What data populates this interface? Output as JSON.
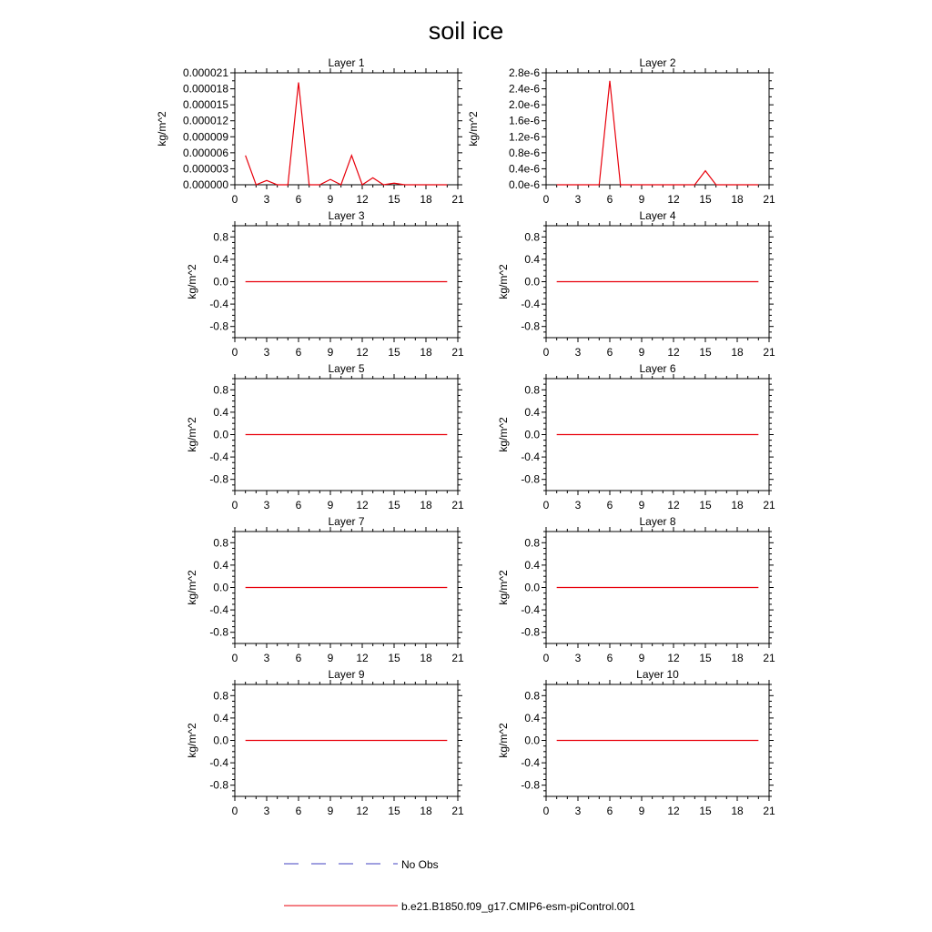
{
  "title": "soil ice",
  "colors": {
    "model": "#e8000b",
    "obs": "#4040c0"
  },
  "legend": {
    "obs_label": "No Obs",
    "model_label": "b.e21.B1850.f09_g17.CMIP6-esm-piControl.001"
  },
  "chart_data": [
    {
      "type": "line",
      "title": "Layer 1",
      "ylabel": "kg/m^2",
      "xlim": [
        0,
        21
      ],
      "ylim": [
        0,
        2.1e-05
      ],
      "xticks": [
        "0",
        "3",
        "6",
        "9",
        "12",
        "15",
        "18",
        "21"
      ],
      "yticks": [
        "0.000000",
        "0.000003",
        "0.000006",
        "0.000009",
        "0.000012",
        "0.000015",
        "0.000018",
        "0.000021"
      ],
      "x": [
        1,
        2,
        3,
        4,
        5,
        6,
        7,
        8,
        9,
        10,
        11,
        12,
        13,
        14,
        15,
        16,
        17,
        18,
        19,
        20
      ],
      "series": [
        {
          "values": [
            5.5e-06,
            0.0,
            8e-07,
            0.0,
            0.0,
            1.92e-05,
            0.0,
            0.0,
            1e-06,
            0.0,
            5.5e-06,
            0.0,
            1.3e-06,
            0.0,
            3e-07,
            0.0,
            0.0,
            0.0,
            0.0,
            0.0
          ]
        }
      ]
    },
    {
      "type": "line",
      "title": "Layer 2",
      "ylabel": "kg/m^2",
      "xlim": [
        0,
        21
      ],
      "ylim": [
        0,
        2.8e-06
      ],
      "xticks": [
        "0",
        "3",
        "6",
        "9",
        "12",
        "15",
        "18",
        "21"
      ],
      "yticks": [
        "0.0e-6",
        "0.4e-6",
        "0.8e-6",
        "1.2e-6",
        "1.6e-6",
        "2.0e-6",
        "2.4e-6",
        "2.8e-6"
      ],
      "x": [
        1,
        2,
        3,
        4,
        5,
        6,
        7,
        8,
        9,
        10,
        11,
        12,
        13,
        14,
        15,
        16,
        17,
        18,
        19,
        20
      ],
      "series": [
        {
          "values": [
            0,
            0,
            0,
            0,
            0,
            2.6e-06,
            0,
            0,
            0,
            0,
            0,
            0,
            0,
            0,
            3.5e-07,
            0,
            0,
            0,
            0,
            0
          ]
        }
      ]
    },
    {
      "type": "line",
      "title": "Layer 3",
      "ylabel": "kg/m^2",
      "xlim": [
        0,
        21
      ],
      "ylim": [
        -1,
        1
      ],
      "xticks": [
        "0",
        "3",
        "6",
        "9",
        "12",
        "15",
        "18",
        "21"
      ],
      "yticks": [
        "-0.8",
        "-0.4",
        "0.0",
        "0.4",
        "0.8"
      ],
      "x": [
        1,
        20
      ],
      "series": [
        {
          "values": [
            0,
            0
          ]
        }
      ]
    },
    {
      "type": "line",
      "title": "Layer 4",
      "ylabel": "kg/m^2",
      "xlim": [
        0,
        21
      ],
      "ylim": [
        -1,
        1
      ],
      "xticks": [
        "0",
        "3",
        "6",
        "9",
        "12",
        "15",
        "18",
        "21"
      ],
      "yticks": [
        "-0.8",
        "-0.4",
        "0.0",
        "0.4",
        "0.8"
      ],
      "x": [
        1,
        20
      ],
      "series": [
        {
          "values": [
            0,
            0
          ]
        }
      ]
    },
    {
      "type": "line",
      "title": "Layer 5",
      "ylabel": "kg/m^2",
      "xlim": [
        0,
        21
      ],
      "ylim": [
        -1,
        1
      ],
      "xticks": [
        "0",
        "3",
        "6",
        "9",
        "12",
        "15",
        "18",
        "21"
      ],
      "yticks": [
        "-0.8",
        "-0.4",
        "0.0",
        "0.4",
        "0.8"
      ],
      "x": [
        1,
        20
      ],
      "series": [
        {
          "values": [
            0,
            0
          ]
        }
      ]
    },
    {
      "type": "line",
      "title": "Layer 6",
      "ylabel": "kg/m^2",
      "xlim": [
        0,
        21
      ],
      "ylim": [
        -1,
        1
      ],
      "xticks": [
        "0",
        "3",
        "6",
        "9",
        "12",
        "15",
        "18",
        "21"
      ],
      "yticks": [
        "-0.8",
        "-0.4",
        "0.0",
        "0.4",
        "0.8"
      ],
      "x": [
        1,
        20
      ],
      "series": [
        {
          "values": [
            0,
            0
          ]
        }
      ]
    },
    {
      "type": "line",
      "title": "Layer 7",
      "ylabel": "kg/m^2",
      "xlim": [
        0,
        21
      ],
      "ylim": [
        -1,
        1
      ],
      "xticks": [
        "0",
        "3",
        "6",
        "9",
        "12",
        "15",
        "18",
        "21"
      ],
      "yticks": [
        "-0.8",
        "-0.4",
        "0.0",
        "0.4",
        "0.8"
      ],
      "x": [
        1,
        20
      ],
      "series": [
        {
          "values": [
            0,
            0
          ]
        }
      ]
    },
    {
      "type": "line",
      "title": "Layer 8",
      "ylabel": "kg/m^2",
      "xlim": [
        0,
        21
      ],
      "ylim": [
        -1,
        1
      ],
      "xticks": [
        "0",
        "3",
        "6",
        "9",
        "12",
        "15",
        "18",
        "21"
      ],
      "yticks": [
        "-0.8",
        "-0.4",
        "0.0",
        "0.4",
        "0.8"
      ],
      "x": [
        1,
        20
      ],
      "series": [
        {
          "values": [
            0,
            0
          ]
        }
      ]
    },
    {
      "type": "line",
      "title": "Layer 9",
      "ylabel": "kg/m^2",
      "xlim": [
        0,
        21
      ],
      "ylim": [
        -1,
        1
      ],
      "xticks": [
        "0",
        "3",
        "6",
        "9",
        "12",
        "15",
        "18",
        "21"
      ],
      "yticks": [
        "-0.8",
        "-0.4",
        "0.0",
        "0.4",
        "0.8"
      ],
      "x": [
        1,
        20
      ],
      "series": [
        {
          "values": [
            0,
            0
          ]
        }
      ]
    },
    {
      "type": "line",
      "title": "Layer 10",
      "ylabel": "kg/m^2",
      "xlim": [
        0,
        21
      ],
      "ylim": [
        -1,
        1
      ],
      "xticks": [
        "0",
        "3",
        "6",
        "9",
        "12",
        "15",
        "18",
        "21"
      ],
      "yticks": [
        "-0.8",
        "-0.4",
        "0.0",
        "0.4",
        "0.8"
      ],
      "x": [
        1,
        20
      ],
      "series": [
        {
          "values": [
            0,
            0
          ]
        }
      ]
    }
  ]
}
